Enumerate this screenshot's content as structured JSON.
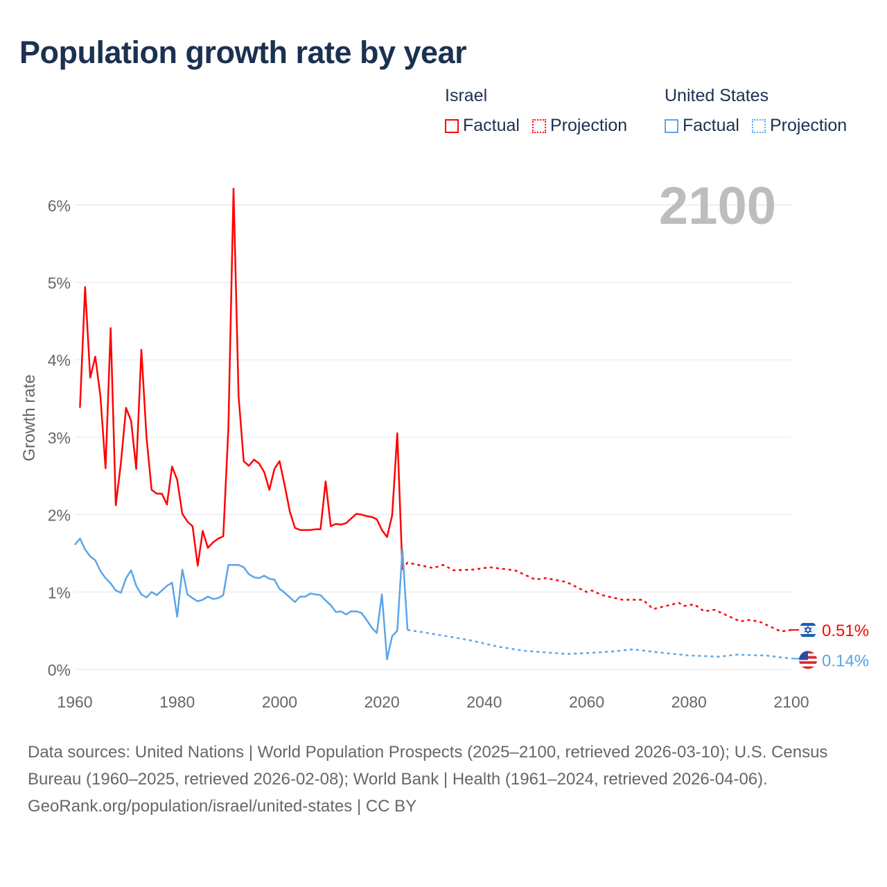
{
  "title": "Population growth rate by year",
  "legend": [
    {
      "country": "Israel",
      "color": "#ff0000",
      "factual": "Factual",
      "projection": "Projection"
    },
    {
      "country": "United States",
      "color": "#5ba4e8",
      "factual": "Factual",
      "projection": "Projection"
    }
  ],
  "chart_data": {
    "type": "line",
    "title": "Population growth rate by year",
    "xlabel": "",
    "ylabel": "Growth rate",
    "xlim": [
      1960,
      2100
    ],
    "ylim": [
      0,
      6.2
    ],
    "x_ticks": [
      1960,
      1980,
      2000,
      2020,
      2040,
      2060,
      2080,
      2100
    ],
    "y_ticks": [
      0,
      1,
      2,
      3,
      4,
      5,
      6
    ],
    "y_tick_labels": [
      "0%",
      "1%",
      "2%",
      "3%",
      "4%",
      "5%",
      "6%"
    ],
    "grid": true,
    "current_year": "2100",
    "series": [
      {
        "name": "Israel",
        "color": "#ff0000",
        "end_label": "0.51%",
        "flag": "israel-flag",
        "factual_x": [
          1961,
          1962,
          1963,
          1964,
          1965,
          1966,
          1967,
          1968,
          1969,
          1970,
          1971,
          1972,
          1973,
          1974,
          1975,
          1976,
          1977,
          1978,
          1979,
          1980,
          1981,
          1982,
          1983,
          1984,
          1985,
          1986,
          1987,
          1988,
          1989,
          1990,
          1991,
          1992,
          1993,
          1994,
          1995,
          1996,
          1997,
          1998,
          1999,
          2000,
          2001,
          2002,
          2003,
          2004,
          2005,
          2006,
          2007,
          2008,
          2009,
          2010,
          2011,
          2012,
          2013,
          2014,
          2015,
          2016,
          2017,
          2018,
          2019,
          2020,
          2021,
          2022,
          2023,
          2024
        ],
        "factual": [
          3.38,
          4.94,
          3.77,
          4.04,
          3.53,
          2.6,
          4.41,
          2.12,
          2.67,
          3.38,
          3.21,
          2.59,
          4.13,
          3.0,
          2.32,
          2.27,
          2.27,
          2.13,
          2.62,
          2.45,
          2.01,
          1.91,
          1.85,
          1.34,
          1.79,
          1.57,
          1.64,
          1.69,
          1.72,
          3.12,
          6.21,
          3.53,
          2.69,
          2.63,
          2.71,
          2.66,
          2.55,
          2.32,
          2.59,
          2.69,
          2.38,
          2.04,
          1.83,
          1.8,
          1.8,
          1.8,
          1.81,
          1.81,
          2.43,
          1.85,
          1.88,
          1.87,
          1.89,
          1.95,
          2.01,
          2.0,
          1.98,
          1.97,
          1.94,
          1.8,
          1.71,
          1.99,
          3.05,
          1.29
        ],
        "projection_x": [
          2024,
          2025,
          2030,
          2032,
          2034,
          2038,
          2041,
          2046,
          2050,
          2052,
          2056,
          2060,
          2061,
          2063,
          2067,
          2071,
          2073,
          2078,
          2079,
          2081,
          2083,
          2085,
          2090,
          2092,
          2094,
          2098,
          2100
        ],
        "projection": [
          1.29,
          1.38,
          1.31,
          1.35,
          1.28,
          1.29,
          1.32,
          1.28,
          1.16,
          1.18,
          1.13,
          1.0,
          1.02,
          0.96,
          0.9,
          0.9,
          0.78,
          0.86,
          0.82,
          0.84,
          0.75,
          0.77,
          0.62,
          0.64,
          0.61,
          0.49,
          0.51
        ]
      },
      {
        "name": "United States",
        "color": "#5ba4e8",
        "end_label": "0.14%",
        "flag": "us-flag",
        "factual_x": [
          1960,
          1961,
          1962,
          1963,
          1964,
          1965,
          1966,
          1967,
          1968,
          1969,
          1970,
          1971,
          1972,
          1973,
          1974,
          1975,
          1976,
          1977,
          1978,
          1979,
          1980,
          1981,
          1982,
          1983,
          1984,
          1985,
          1986,
          1987,
          1988,
          1989,
          1990,
          1991,
          1992,
          1993,
          1994,
          1995,
          1996,
          1997,
          1998,
          1999,
          2000,
          2001,
          2002,
          2003,
          2004,
          2005,
          2006,
          2007,
          2008,
          2009,
          2010,
          2011,
          2012,
          2013,
          2014,
          2015,
          2016,
          2017,
          2018,
          2019,
          2020,
          2021,
          2022,
          2023,
          2024,
          2025
        ],
        "factual": [
          1.61,
          1.69,
          1.55,
          1.46,
          1.41,
          1.27,
          1.18,
          1.11,
          1.02,
          0.99,
          1.18,
          1.28,
          1.08,
          0.97,
          0.93,
          1.0,
          0.96,
          1.02,
          1.08,
          1.12,
          0.68,
          1.29,
          0.97,
          0.92,
          0.88,
          0.9,
          0.94,
          0.91,
          0.92,
          0.96,
          1.35,
          1.35,
          1.35,
          1.32,
          1.23,
          1.19,
          1.18,
          1.21,
          1.17,
          1.16,
          1.04,
          0.99,
          0.93,
          0.87,
          0.94,
          0.94,
          0.98,
          0.97,
          0.96,
          0.89,
          0.83,
          0.74,
          0.75,
          0.71,
          0.75,
          0.75,
          0.73,
          0.64,
          0.54,
          0.47,
          0.97,
          0.13,
          0.43,
          0.5,
          1.55,
          0.51
        ],
        "projection_x": [
          2025,
          2029,
          2037,
          2043,
          2048,
          2056,
          2060,
          2065,
          2069,
          2074,
          2080,
          2086,
          2089,
          2095,
          2100
        ],
        "projection": [
          0.51,
          0.47,
          0.38,
          0.29,
          0.24,
          0.2,
          0.21,
          0.23,
          0.26,
          0.22,
          0.18,
          0.165,
          0.19,
          0.18,
          0.14
        ]
      }
    ]
  },
  "footer": {
    "sources": "Data sources: United Nations | World Population Prospects (2025–2100, retrieved 2026-03-10); U.S. Census Bureau (1960–2025, retrieved 2026-02-08); World Bank | Health (1961–2024, retrieved 2026-04-06).",
    "attribution": "GeoRank.org/population/israel/united-states | CC BY"
  }
}
